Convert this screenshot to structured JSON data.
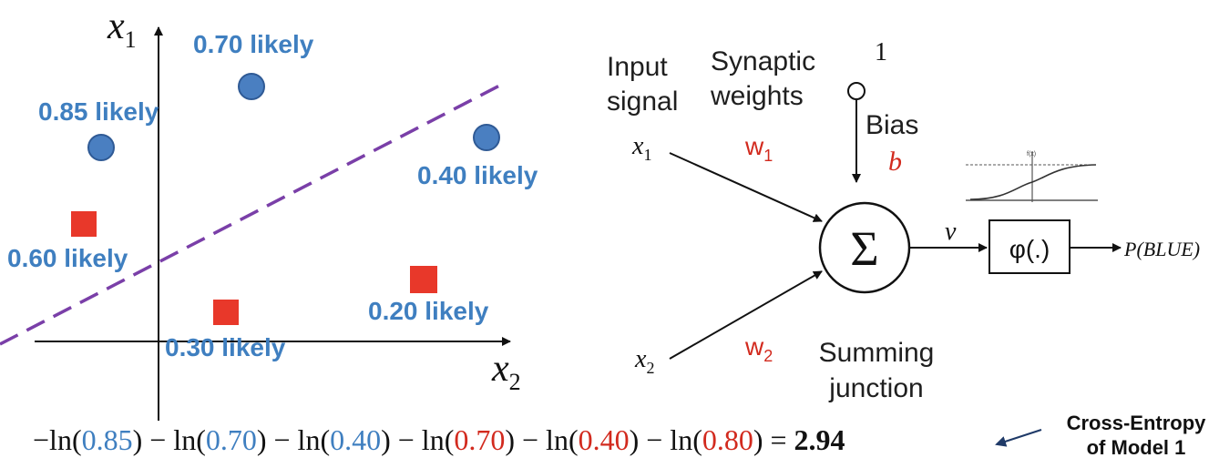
{
  "scatter": {
    "x_axis_label": "x",
    "x_axis_sub": "2",
    "y_axis_label": "x",
    "y_axis_sub": "1",
    "points": [
      {
        "shape": "circle",
        "class": "blue",
        "label": "0.70 likely"
      },
      {
        "shape": "circle",
        "class": "blue",
        "label": "0.85 likely"
      },
      {
        "shape": "circle",
        "class": "blue",
        "label": "0.40 likely"
      },
      {
        "shape": "square",
        "class": "red",
        "label": "0.60 likely"
      },
      {
        "shape": "square",
        "class": "red",
        "label": "0.30 likely"
      },
      {
        "shape": "square",
        "class": "red",
        "label": "0.20 likely"
      }
    ],
    "colors": {
      "blue": "#3f7fc0",
      "red": "#e8382a",
      "boundary": "#7a3fa8"
    }
  },
  "neuron": {
    "input_signal": "Input\nsignal",
    "synaptic_weights": "Synaptic\nweights",
    "bias_input": "1",
    "bias_label": "Bias",
    "bias_symbol": "b",
    "x1": "x",
    "x1_sub": "1",
    "x2": "x",
    "x2_sub": "2",
    "w1": "w",
    "w1_sub": "1",
    "w2": "w",
    "w2_sub": "2",
    "sum_symbol": "Σ",
    "v_label": "v",
    "activation": "φ(.)",
    "output": "P(BLUE)",
    "summing_junction": "Summing\njunction",
    "sigmoid_mini_label": "f(x)"
  },
  "equation": {
    "terms": [
      {
        "prefix": "−ln(",
        "value": "0.85",
        "color": "#3f7fc0"
      },
      {
        "prefix": " − ln(",
        "value": "0.70",
        "color": "#3f7fc0"
      },
      {
        "prefix": " − ln(",
        "value": "0.40",
        "color": "#3f7fc0"
      },
      {
        "prefix": " − ln(",
        "value": "0.70",
        "color": "#d22a1e"
      },
      {
        "prefix": " − ln(",
        "value": "0.40",
        "color": "#d22a1e"
      },
      {
        "prefix": " − ln(",
        "value": "0.80",
        "color": "#d22a1e"
      }
    ],
    "equals": " = ",
    "result": "2.94"
  },
  "annotation": {
    "line1": "Cross-Entropy",
    "line2": "of Model 1"
  }
}
